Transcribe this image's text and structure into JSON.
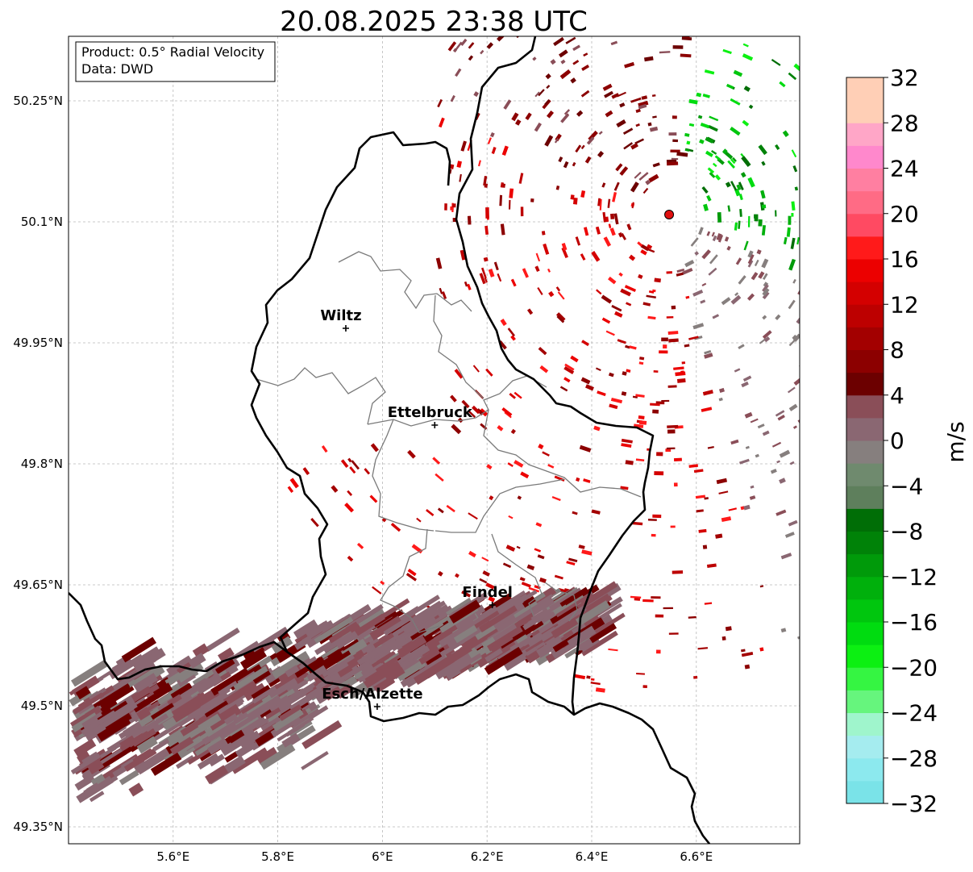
{
  "title": "20.08.2025 23:38 UTC",
  "info_box": {
    "product": "Product: 0.5° Radial Velocity",
    "data": "Data: DWD"
  },
  "map": {
    "lon_range": [
      5.4,
      6.8
    ],
    "lat_range": [
      49.3,
      50.3
    ],
    "x_ticks": [
      {
        "value": 5.6,
        "label": "5.6°E"
      },
      {
        "value": 5.8,
        "label": "5.8°E"
      },
      {
        "value": 6.0,
        "label": "6°E"
      },
      {
        "value": 6.2,
        "label": "6.2°E"
      },
      {
        "value": 6.4,
        "label": "6.4°E"
      },
      {
        "value": 6.6,
        "label": "6.6°E"
      }
    ],
    "y_ticks": [
      {
        "value": 50.25,
        "label": "50.25°N"
      },
      {
        "value": 50.1,
        "label": "50.1°N"
      },
      {
        "value": 49.95,
        "label": "49.95°N"
      },
      {
        "value": 49.8,
        "label": "49.8°N"
      },
      {
        "value": 49.65,
        "label": "49.65°N"
      },
      {
        "value": 49.5,
        "label": "49.5°N"
      },
      {
        "value": 49.35,
        "label": "49.35°N"
      }
    ],
    "grid": true,
    "cities": [
      {
        "name": "Wiltz",
        "lon": 5.93,
        "lat": 49.968
      },
      {
        "name": "Ettelbruck",
        "lon": 6.1,
        "lat": 49.848
      },
      {
        "name": "Findel",
        "lon": 6.21,
        "lat": 49.625
      },
      {
        "name": "Esch/Alzette",
        "lon": 5.99,
        "lat": 49.499
      }
    ],
    "radar_site": {
      "lon": 6.548,
      "lat": 50.109,
      "color": "#e01010"
    }
  },
  "colorbar": {
    "label": "m/s",
    "vmin": -32,
    "vmax": 32,
    "ticks": [
      {
        "value": 32,
        "label": "32"
      },
      {
        "value": 28,
        "label": "28"
      },
      {
        "value": 24,
        "label": "24"
      },
      {
        "value": 20,
        "label": "20"
      },
      {
        "value": 16,
        "label": "16"
      },
      {
        "value": 12,
        "label": "12"
      },
      {
        "value": 8,
        "label": "8"
      },
      {
        "value": 4,
        "label": "4"
      },
      {
        "value": 0,
        "label": "0"
      },
      {
        "value": -4,
        "label": "−4"
      },
      {
        "value": -8,
        "label": "−8"
      },
      {
        "value": -12,
        "label": "−12"
      },
      {
        "value": -16,
        "label": "−16"
      },
      {
        "value": -20,
        "label": "−20"
      },
      {
        "value": -24,
        "label": "−24"
      },
      {
        "value": -28,
        "label": "−28"
      },
      {
        "value": -32,
        "label": "−32"
      }
    ],
    "colors": [
      "#7ae3e8",
      "#8ce9ee",
      "#a5ecef",
      "#9ff5cc",
      "#66f57d",
      "#35f542",
      "#0cf012",
      "#00dc10",
      "#00c60e",
      "#00b00c",
      "#009a0a",
      "#008208",
      "#006e06",
      "#5e7f5c",
      "#6f8a6e",
      "#867f7e",
      "#8a6772",
      "#8a4e58",
      "#6c0000",
      "#8c0000",
      "#a30000",
      "#bd0000",
      "#d40000",
      "#ec0000",
      "#ff1a1a",
      "#ff4a62",
      "#ff6b85",
      "#ff7fa1",
      "#ff88cc",
      "#ffa6c7",
      "#ffcfb6",
      "#ffcfb6"
    ]
  }
}
